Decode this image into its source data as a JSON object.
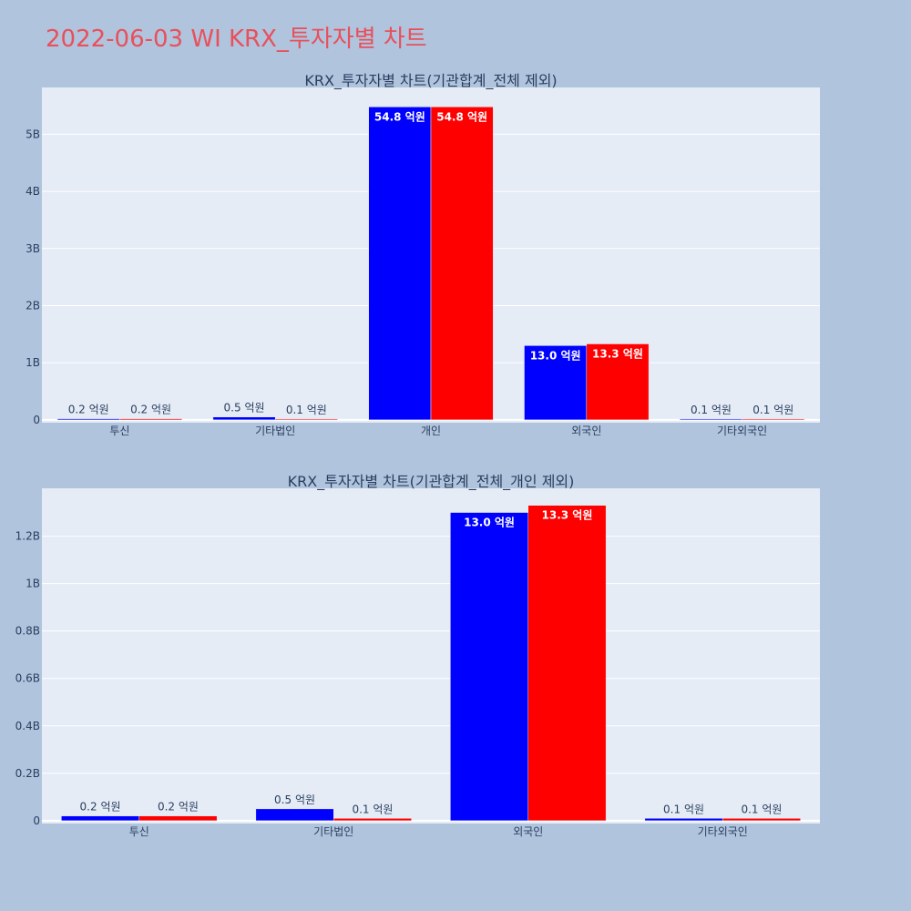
{
  "page": {
    "title": "2022-06-03 WI KRX_투자자별 차트"
  },
  "colors": {
    "background": "#b0c4de",
    "plot_bg": "#e5ecf6",
    "grid": "#ffffff",
    "series_1": "#0000ff",
    "series_2": "#ff0000",
    "title": "#e8505b",
    "text": "#2a3f5f"
  },
  "chart_data": [
    {
      "type": "bar",
      "title": "KRX_투자자별 차트(기관합계_전체 제외)",
      "categories": [
        "투신",
        "기타법인",
        "개인",
        "외국인",
        "기타외국인"
      ],
      "series": [
        {
          "color": "#0000ff",
          "values": [
            20000000,
            50000000,
            5480000000,
            1300000000,
            10000000
          ],
          "labels": [
            "0.2 억원",
            "0.5 억원",
            "54.8 억원",
            "13.0 억원",
            "0.1 억원"
          ]
        },
        {
          "color": "#ff0000",
          "values": [
            20000000,
            10000000,
            5480000000,
            1330000000,
            10000000
          ],
          "labels": [
            "0.2 억원",
            "0.1 억원",
            "54.8 억원",
            "13.3 억원",
            "0.1 억원"
          ]
        }
      ],
      "yticks": [
        0,
        1000000000,
        2000000000,
        3000000000,
        4000000000,
        5000000000
      ],
      "ytick_labels": [
        "0",
        "1B",
        "2B",
        "3B",
        "4B",
        "5B"
      ],
      "ylim": [
        -50000000,
        5820000000
      ],
      "grid": true,
      "xlabel": "",
      "ylabel": ""
    },
    {
      "type": "bar",
      "title": "KRX_투자자별 차트(기관합계_전체_개인 제외)",
      "categories": [
        "투신",
        "기타법인",
        "외국인",
        "기타외국인"
      ],
      "series": [
        {
          "color": "#0000ff",
          "values": [
            20000000,
            50000000,
            1300000000,
            10000000
          ],
          "labels": [
            "0.2 억원",
            "0.5 억원",
            "13.0 억원",
            "0.1 억원"
          ]
        },
        {
          "color": "#ff0000",
          "values": [
            20000000,
            10000000,
            1330000000,
            10000000
          ],
          "labels": [
            "0.2 억원",
            "0.1 억원",
            "13.3 억원",
            "0.1 억원"
          ]
        }
      ],
      "yticks": [
        0,
        200000000,
        400000000,
        600000000,
        800000000,
        1000000000,
        1200000000
      ],
      "ytick_labels": [
        "0",
        "0.2B",
        "0.4B",
        "0.6B",
        "0.8B",
        "1B",
        "1.2B"
      ],
      "ylim": [
        -12000000,
        1402000000
      ],
      "grid": true,
      "xlabel": "",
      "ylabel": ""
    }
  ]
}
